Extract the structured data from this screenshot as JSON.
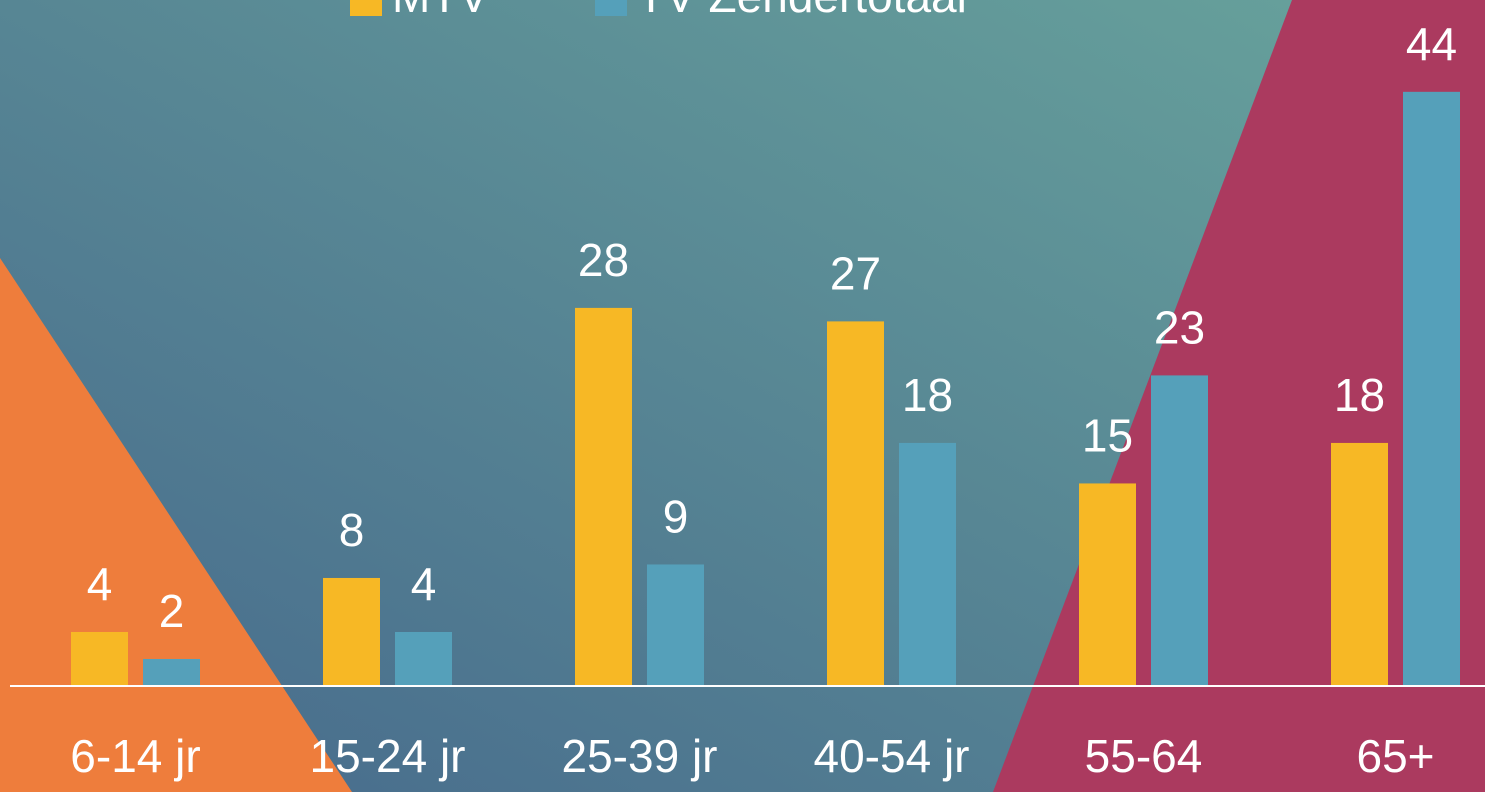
{
  "chart_data": {
    "type": "bar",
    "categories": [
      "6-14 jr",
      "15-24 jr",
      "25-39 jr",
      "40-54 jr",
      "55-64",
      "65+"
    ],
    "series": [
      {
        "name": "MTV",
        "color": "#f7b825",
        "values": [
          4,
          8,
          28,
          27,
          15,
          18
        ]
      },
      {
        "name": "TV Zendertotaal",
        "color": "#55a0ba",
        "values": [
          2,
          4,
          9,
          18,
          23,
          44
        ]
      }
    ],
    "ylim": [
      0,
      50.8
    ]
  }
}
